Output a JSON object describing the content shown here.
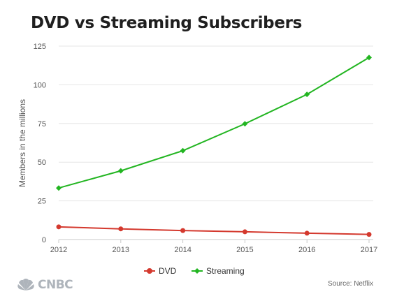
{
  "title": "DVD vs Streaming Subscribers",
  "source": "Source: Netflix",
  "logo_text": "CNBC",
  "colors": {
    "dvd": "#d4392e",
    "streaming": "#22b521",
    "grid": "#e6e6e6",
    "axis": "#c8c8c8"
  },
  "chart_data": {
    "type": "line",
    "title": "DVD vs Streaming Subscribers",
    "xlabel": "",
    "ylabel": "Members in the millions",
    "x": [
      "2012",
      "2013",
      "2014",
      "2015",
      "2016",
      "2017"
    ],
    "ylim": [
      0,
      125
    ],
    "yticks": [
      0,
      25,
      50,
      75,
      100,
      125
    ],
    "grid": true,
    "legend": "bottom",
    "series": [
      {
        "name": "DVD",
        "values": [
          8.2,
          6.9,
          5.8,
          5.0,
          4.1,
          3.3
        ],
        "color": "#d4392e",
        "marker": "circle"
      },
      {
        "name": "Streaming",
        "values": [
          33.3,
          44.4,
          57.4,
          74.8,
          93.8,
          117.6
        ],
        "color": "#22b521",
        "marker": "diamond"
      }
    ]
  }
}
